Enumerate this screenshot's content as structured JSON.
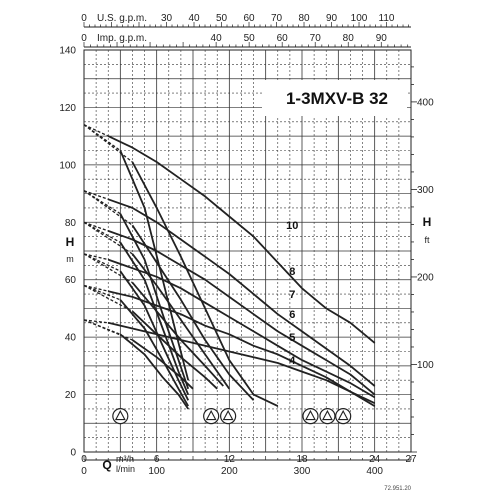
{
  "chart_data": {
    "type": "line",
    "title": "1-3MXV-B 32",
    "reference": "72.951.20",
    "left_axis": {
      "letter": "H",
      "unit": "m",
      "range": [
        0,
        140
      ],
      "ticks": [
        0,
        20,
        40,
        60,
        80,
        100,
        120,
        140
      ]
    },
    "right_axis": {
      "letter": "H",
      "unit": "ft",
      "range": [
        0,
        459.3
      ],
      "ticks": [
        100,
        200,
        300,
        400
      ]
    },
    "x_axis_m3h": {
      "letter": "Q",
      "unit": "m³/h",
      "range": [
        0,
        27
      ],
      "ticks": [
        0,
        6,
        12,
        18,
        24,
        27
      ]
    },
    "x_axis_lmin": {
      "unit": "l/min",
      "range": [
        0,
        450
      ],
      "ticks": [
        0,
        100,
        200,
        300,
        400
      ]
    },
    "top_axis_us": {
      "label": "U.S. g.p.m.",
      "range": [
        0,
        118.9
      ],
      "ticks": [
        0,
        30,
        40,
        50,
        60,
        70,
        80,
        90,
        100,
        110
      ]
    },
    "top_axis_imp": {
      "label": "Imp. g.p.m.",
      "range": [
        0,
        99
      ],
      "ticks": [
        0,
        40,
        50,
        60,
        70,
        80,
        90
      ]
    },
    "stage_labels": [
      {
        "text": "10",
        "q": 17.2,
        "h": 79
      },
      {
        "text": "8",
        "q": 17.2,
        "h": 63
      },
      {
        "text": "7",
        "q": 17.2,
        "h": 55
      },
      {
        "text": "6",
        "q": 17.2,
        "h": 48
      },
      {
        "text": "5",
        "q": 17.2,
        "h": 40
      },
      {
        "text": "4",
        "q": 17.2,
        "h": 32
      }
    ],
    "operating_markers_q": [
      3.0,
      10.5,
      11.9,
      18.7,
      20.1,
      21.4
    ],
    "series": [
      {
        "name": "10",
        "points": [
          [
            0,
            114
          ],
          [
            2,
            110
          ],
          [
            4,
            106
          ],
          [
            6,
            101
          ],
          [
            8,
            95
          ],
          [
            10,
            89
          ],
          [
            12,
            82
          ],
          [
            14,
            75
          ],
          [
            16,
            66
          ],
          [
            18,
            57
          ],
          [
            20,
            50
          ],
          [
            22,
            45
          ],
          [
            24,
            38
          ]
        ]
      },
      {
        "name": "8",
        "points": [
          [
            0,
            91
          ],
          [
            2,
            88
          ],
          [
            4,
            85
          ],
          [
            6,
            80
          ],
          [
            8,
            74
          ],
          [
            10,
            68
          ],
          [
            12,
            62
          ],
          [
            14,
            55
          ],
          [
            16,
            48
          ],
          [
            18,
            42
          ],
          [
            20,
            36
          ],
          [
            22,
            30
          ],
          [
            24,
            23
          ]
        ]
      },
      {
        "name": "7",
        "points": [
          [
            0,
            80
          ],
          [
            2,
            77
          ],
          [
            4,
            74
          ],
          [
            6,
            70
          ],
          [
            8,
            65
          ],
          [
            10,
            60
          ],
          [
            12,
            54
          ],
          [
            14,
            48
          ],
          [
            16,
            42
          ],
          [
            18,
            37
          ],
          [
            20,
            32
          ],
          [
            22,
            27
          ],
          [
            24,
            20
          ]
        ]
      },
      {
        "name": "6",
        "points": [
          [
            0,
            69
          ],
          [
            2,
            67
          ],
          [
            4,
            64
          ],
          [
            6,
            61
          ],
          [
            8,
            57
          ],
          [
            10,
            52
          ],
          [
            12,
            47
          ],
          [
            14,
            42
          ],
          [
            16,
            37
          ],
          [
            18,
            32
          ],
          [
            20,
            28
          ],
          [
            22,
            24
          ],
          [
            24,
            19
          ]
        ]
      },
      {
        "name": "5",
        "points": [
          [
            0,
            58
          ],
          [
            2,
            56
          ],
          [
            4,
            54
          ],
          [
            6,
            51
          ],
          [
            8,
            48
          ],
          [
            10,
            44
          ],
          [
            12,
            41
          ],
          [
            14,
            37
          ],
          [
            16,
            34
          ],
          [
            18,
            30
          ],
          [
            20,
            26
          ],
          [
            22,
            21
          ],
          [
            24,
            16
          ]
        ]
      },
      {
        "name": "4",
        "points": [
          [
            0,
            46
          ],
          [
            2,
            45
          ],
          [
            4,
            43
          ],
          [
            6,
            41
          ],
          [
            8,
            39
          ],
          [
            10,
            37
          ],
          [
            12,
            35
          ],
          [
            14,
            33
          ],
          [
            16,
            31
          ],
          [
            18,
            28
          ],
          [
            20,
            25
          ],
          [
            22,
            21
          ],
          [
            24,
            17
          ]
        ]
      },
      {
        "name": "",
        "points": [
          [
            0,
            114
          ],
          [
            4,
            101
          ],
          [
            6,
            85
          ],
          [
            8,
            68
          ],
          [
            10,
            50
          ],
          [
            12,
            32
          ],
          [
            14,
            20
          ],
          [
            16,
            16
          ]
        ]
      },
      {
        "name": "",
        "points": [
          [
            0,
            91
          ],
          [
            4,
            79
          ],
          [
            6,
            66
          ],
          [
            8,
            53
          ],
          [
            10,
            39
          ],
          [
            12,
            27
          ],
          [
            14,
            18
          ]
        ]
      },
      {
        "name": "",
        "points": [
          [
            0,
            80
          ],
          [
            4,
            69
          ],
          [
            6,
            58
          ],
          [
            8,
            46
          ],
          [
            10,
            34
          ],
          [
            12,
            22
          ]
        ]
      },
      {
        "name": "",
        "points": [
          [
            0,
            69
          ],
          [
            4,
            59
          ],
          [
            6,
            49
          ],
          [
            8,
            39
          ],
          [
            10,
            30
          ],
          [
            11.5,
            23
          ]
        ]
      },
      {
        "name": "",
        "points": [
          [
            0,
            58
          ],
          [
            4,
            49
          ],
          [
            6,
            41
          ],
          [
            8,
            33
          ],
          [
            10,
            26
          ],
          [
            11,
            22
          ]
        ]
      },
      {
        "name": "",
        "points": [
          [
            0,
            46
          ],
          [
            4,
            39
          ],
          [
            6,
            33
          ],
          [
            8,
            26
          ],
          [
            9,
            22
          ]
        ]
      },
      {
        "name": "",
        "points": [
          [
            0,
            114
          ],
          [
            3,
            105
          ],
          [
            5,
            85
          ],
          [
            6.5,
            60
          ],
          [
            7.8,
            38
          ],
          [
            8.6,
            25
          ]
        ]
      },
      {
        "name": "",
        "points": [
          [
            0,
            91
          ],
          [
            3,
            83
          ],
          [
            5,
            67
          ],
          [
            6.5,
            48
          ],
          [
            7.8,
            32
          ],
          [
            8.6,
            22
          ]
        ]
      },
      {
        "name": "",
        "points": [
          [
            0,
            80
          ],
          [
            3,
            73
          ],
          [
            5,
            60
          ],
          [
            6.5,
            43
          ],
          [
            7.8,
            28
          ],
          [
            8.6,
            20
          ]
        ]
      },
      {
        "name": "",
        "points": [
          [
            0,
            69
          ],
          [
            3,
            63
          ],
          [
            5,
            51
          ],
          [
            6.5,
            37
          ],
          [
            7.8,
            25
          ],
          [
            8.6,
            18
          ]
        ]
      },
      {
        "name": "",
        "points": [
          [
            0,
            58
          ],
          [
            3,
            53
          ],
          [
            5,
            43
          ],
          [
            6.5,
            32
          ],
          [
            7.8,
            22
          ],
          [
            8.6,
            16
          ]
        ]
      },
      {
        "name": "",
        "points": [
          [
            0,
            46
          ],
          [
            3,
            41
          ],
          [
            5,
            34
          ],
          [
            6.5,
            26
          ],
          [
            7.8,
            20
          ],
          [
            8.6,
            15
          ]
        ]
      }
    ]
  }
}
